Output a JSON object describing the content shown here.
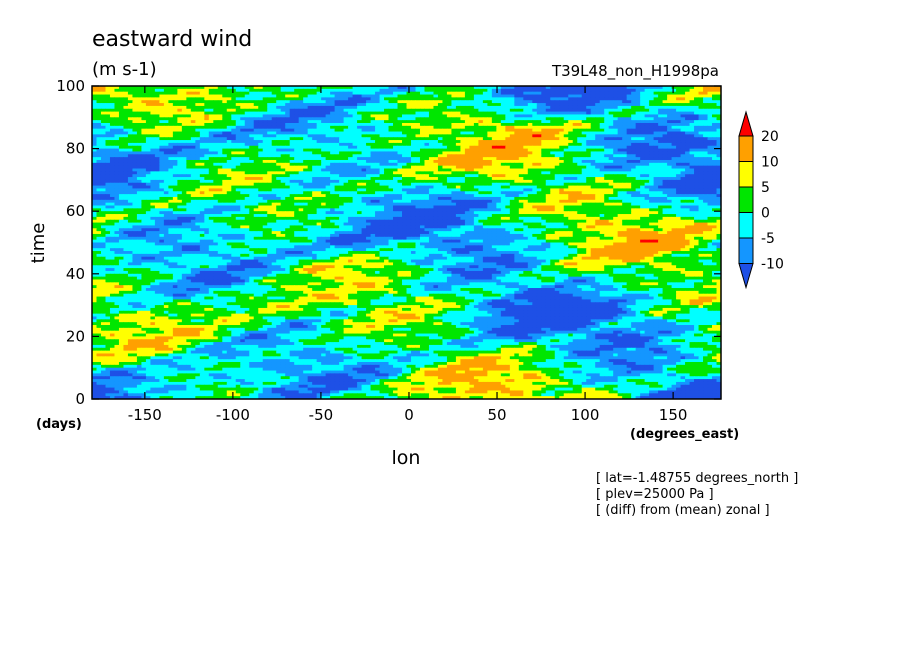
{
  "chart_data": {
    "type": "heatmap",
    "title": "eastward wind",
    "units": "(m s-1)",
    "run_label": "T39L48_non_H1998pa",
    "xlabel": "lon",
    "xunits": "(degrees_east)",
    "ylabel": "time",
    "yunits": "(days)",
    "xlim": [
      -180,
      177.1875
    ],
    "ylim": [
      0,
      100
    ],
    "xticks": [
      -150,
      -100,
      -50,
      0,
      50,
      100,
      150
    ],
    "xtick_labels": [
      "-150",
      "-100",
      "-50",
      "0",
      "50",
      "100",
      "150"
    ],
    "yticks": [
      0,
      20,
      40,
      60,
      80,
      100
    ],
    "ytick_labels": [
      "0",
      "20",
      "40",
      "60",
      "80",
      "100"
    ],
    "contour_levels": [
      -10,
      -5,
      0,
      5,
      10,
      20
    ],
    "colorbar_labels": [
      "20",
      "10",
      "5",
      "0",
      "-5",
      "-10"
    ],
    "colors": [
      "#1e50e6",
      "#1496ff",
      "#00ffff",
      "#00e600",
      "#ffff00",
      "#ffa000",
      "#ff0000"
    ],
    "colorbar_orientation": "vertical-right",
    "annotations": [
      "[ lat=-1.48755 degrees_north ]",
      "[ plev=25000 Pa ]",
      "[ (diff) from (mean) zonal ]"
    ]
  }
}
